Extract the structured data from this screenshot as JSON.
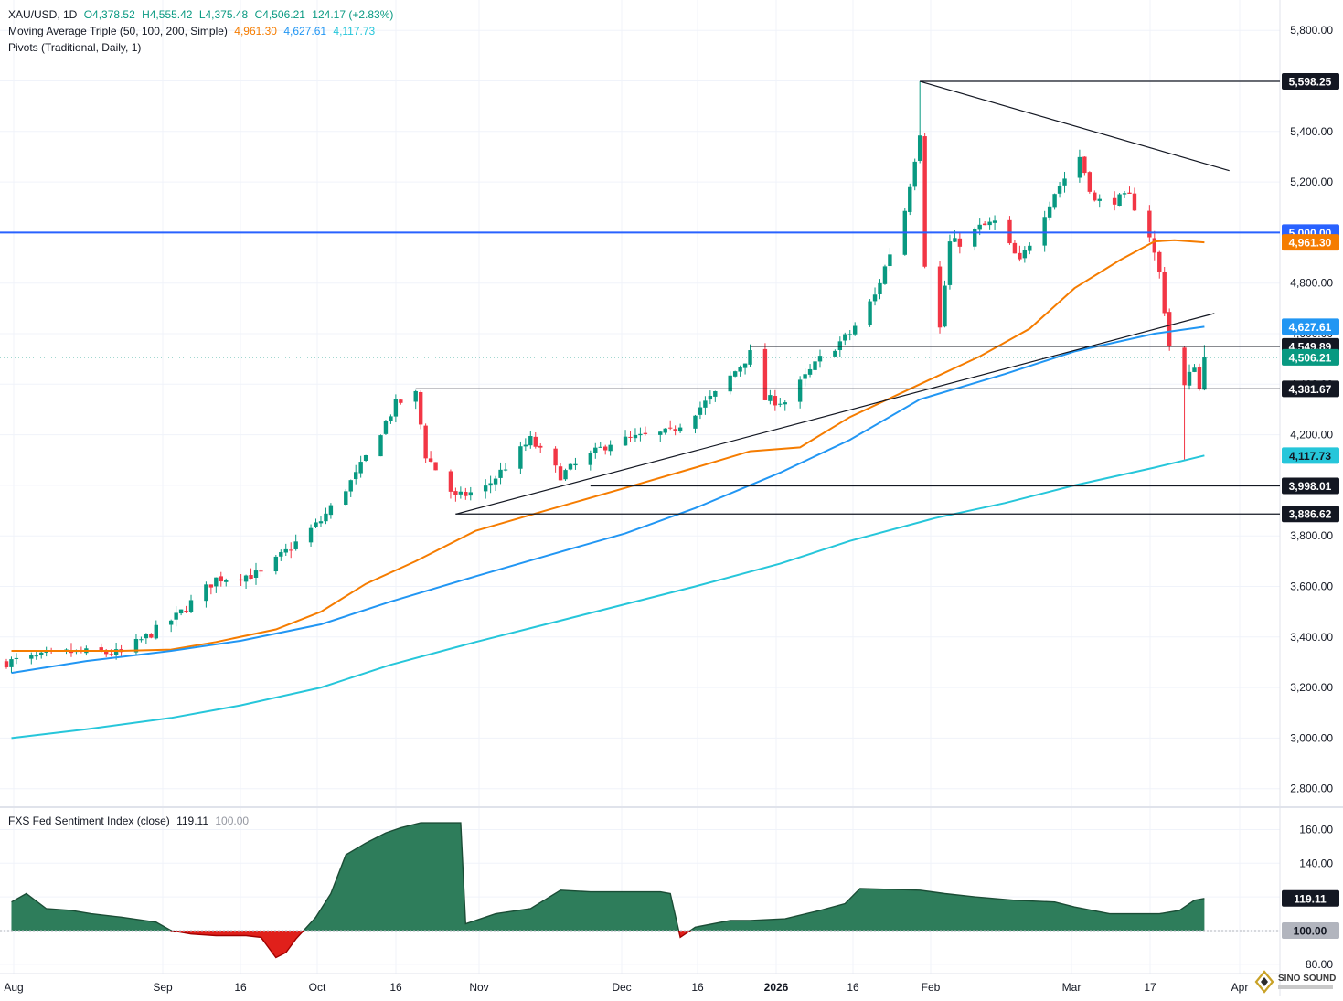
{
  "header": {
    "symbol": "XAU/USD, 1D",
    "open": "O4,378.52",
    "high": "H4,555.42",
    "low": "L4,375.48",
    "close": "C4,506.21",
    "change": "124.17 (+2.83%)",
    "ma_title": "Moving Average Triple (50, 100, 200, Simple)",
    "ma50": "4,961.30",
    "ma100": "4,627.61",
    "ma200": "4,117.73",
    "pivots": "Pivots (Traditional, Daily, 1)"
  },
  "indicator": {
    "title": "FXS Fed Sentiment Index (close)",
    "value": "119.11",
    "base": "100.00"
  },
  "logo_text": "SINO SOUND",
  "colors": {
    "up": "#089981",
    "down": "#f23645",
    "ma50": "#f57c00",
    "ma100": "#2196f3",
    "ma200": "#26c6da",
    "level_5000": "#2962ff",
    "area_pos": "#2e7d5b",
    "area_neg": "#e0201b"
  },
  "chart_data": [
    {
      "type": "candlestick",
      "title": "XAU/USD, 1D",
      "x_ticks": [
        "Aug",
        "Sep",
        "16",
        "Oct",
        "16",
        "Nov",
        "Dec",
        "16",
        "2026",
        "16",
        "Feb",
        "Mar",
        "17",
        "Apr"
      ],
      "y_ticks": [
        2800,
        3000,
        3200,
        3400,
        3600,
        3800,
        4000,
        4200,
        4400,
        4600,
        4800,
        5000,
        5200,
        5400,
        5600,
        5800
      ],
      "ylim": [
        2740,
        5900
      ],
      "grid": true,
      "price_labels": [
        {
          "text": "5,598.25",
          "value": 5598.25,
          "style": "dark"
        },
        {
          "text": "5,000.00",
          "value": 5000.0,
          "style": "blue"
        },
        {
          "text": "4,961.30",
          "value": 4961.3,
          "style": "orange"
        },
        {
          "text": "4,627.61",
          "value": 4627.61,
          "style": "lightblue"
        },
        {
          "text": "4,549.89",
          "value": 4549.89,
          "style": "dark"
        },
        {
          "text": "4,506.21",
          "value": 4506.21,
          "style": "green"
        },
        {
          "text": "4,381.67",
          "value": 4381.67,
          "style": "dark"
        },
        {
          "text": "4,117.73",
          "value": 4117.73,
          "style": "cyan"
        },
        {
          "text": "3,998.01",
          "value": 3998.01,
          "style": "dark"
        },
        {
          "text": "3,886.62",
          "value": 3886.62,
          "style": "dark"
        }
      ],
      "levels": [
        {
          "name": "R-5598",
          "value": 5598.25,
          "from": "2026-01-29"
        },
        {
          "name": "level-5000",
          "value": 5000.0,
          "from": "2025-07-31"
        },
        {
          "name": "R-4549",
          "value": 4549.89,
          "from": "2025-12-26"
        },
        {
          "name": "S-4381",
          "value": 4381.67,
          "from": "2025-10-20"
        },
        {
          "name": "S-3998",
          "value": 3998.01,
          "from": "2025-11-24"
        },
        {
          "name": "S-3886",
          "value": 3886.62,
          "from": "2025-10-28"
        }
      ],
      "trendlines": [
        {
          "name": "descending-trendline",
          "from": [
            "2026-01-29",
            5598
          ],
          "to": [
            "2026-04-01",
            5245
          ]
        },
        {
          "name": "ascending-trendline",
          "from": [
            "2025-10-28",
            3886
          ],
          "to": [
            "2026-03-29",
            4680
          ]
        }
      ],
      "moving_averages": [
        {
          "name": "MA 50",
          "color": "#f57c00",
          "points": [
            [
              "2025-07-31",
              3345
            ],
            [
              "2025-08-22",
              3345
            ],
            [
              "2025-09-01",
              3350
            ],
            [
              "2025-09-10",
              3380
            ],
            [
              "2025-09-22",
              3430
            ],
            [
              "2025-10-01",
              3500
            ],
            [
              "2025-10-10",
              3610
            ],
            [
              "2025-10-20",
              3700
            ],
            [
              "2025-11-01",
              3820
            ],
            [
              "2025-11-15",
              3900
            ],
            [
              "2025-12-01",
              3990
            ],
            [
              "2025-12-15",
              4070
            ],
            [
              "2025-12-26",
              4135
            ],
            [
              "2026-01-05",
              4150
            ],
            [
              "2026-01-15",
              4270
            ],
            [
              "2026-01-29",
              4400
            ],
            [
              "2026-02-10",
              4510
            ],
            [
              "2026-02-20",
              4620
            ],
            [
              "2026-03-01",
              4780
            ],
            [
              "2026-03-10",
              4890
            ],
            [
              "2026-03-17",
              4965
            ],
            [
              "2026-03-21",
              4970
            ],
            [
              "2026-03-27",
              4961.3
            ]
          ]
        },
        {
          "name": "MA 100",
          "color": "#2196f3",
          "points": [
            [
              "2025-07-31",
              3258
            ],
            [
              "2025-08-15",
              3305
            ],
            [
              "2025-09-01",
              3345
            ],
            [
              "2025-09-15",
              3385
            ],
            [
              "2025-10-01",
              3450
            ],
            [
              "2025-10-15",
              3540
            ],
            [
              "2025-11-01",
              3640
            ],
            [
              "2025-11-15",
              3720
            ],
            [
              "2025-12-01",
              3810
            ],
            [
              "2025-12-15",
              3910
            ],
            [
              "2026-01-01",
              4050
            ],
            [
              "2026-01-15",
              4180
            ],
            [
              "2026-01-29",
              4340
            ],
            [
              "2026-02-15",
              4440
            ],
            [
              "2026-03-01",
              4530
            ],
            [
              "2026-03-17",
              4600
            ],
            [
              "2026-03-27",
              4627.61
            ]
          ]
        },
        {
          "name": "MA 200",
          "color": "#26c6da",
          "points": [
            [
              "2025-07-31",
              3000
            ],
            [
              "2025-08-15",
              3035
            ],
            [
              "2025-09-01",
              3080
            ],
            [
              "2025-09-15",
              3130
            ],
            [
              "2025-10-01",
              3200
            ],
            [
              "2025-10-15",
              3290
            ],
            [
              "2025-11-01",
              3380
            ],
            [
              "2025-11-15",
              3450
            ],
            [
              "2025-12-01",
              3530
            ],
            [
              "2025-12-15",
              3600
            ],
            [
              "2026-01-01",
              3690
            ],
            [
              "2026-01-15",
              3780
            ],
            [
              "2026-02-01",
              3870
            ],
            [
              "2026-02-15",
              3930
            ],
            [
              "2026-03-01",
              4000
            ],
            [
              "2026-03-17",
              4070
            ],
            [
              "2026-03-27",
              4117.73
            ]
          ]
        }
      ],
      "anchors": [
        {
          "date": "2025-07-30",
          "price": 3300
        },
        {
          "date": "2025-08-12",
          "price": 3340
        },
        {
          "date": "2025-08-22",
          "price": 3335
        },
        {
          "date": "2025-09-02",
          "price": 3480
        },
        {
          "date": "2025-09-10",
          "price": 3630
        },
        {
          "date": "2025-09-19",
          "price": 3650
        },
        {
          "date": "2025-10-01",
          "price": 3860
        },
        {
          "date": "2025-10-08",
          "price": 4040
        },
        {
          "date": "2025-10-16",
          "price": 4320
        },
        {
          "date": "2025-10-20",
          "price": 4360
        },
        {
          "date": "2025-10-22",
          "price": 4120
        },
        {
          "date": "2025-10-28",
          "price": 3950
        },
        {
          "date": "2025-11-03",
          "price": 3990
        },
        {
          "date": "2025-11-12",
          "price": 4180
        },
        {
          "date": "2025-11-18",
          "price": 4040
        },
        {
          "date": "2025-11-28",
          "price": 4170
        },
        {
          "date": "2025-12-10",
          "price": 4210
        },
        {
          "date": "2025-12-19",
          "price": 4360
        },
        {
          "date": "2025-12-26",
          "price": 4520
        },
        {
          "date": "2025-12-29",
          "price": 4340
        },
        {
          "date": "2026-01-02",
          "price": 4330
        },
        {
          "date": "2026-01-09",
          "price": 4500
        },
        {
          "date": "2026-01-15",
          "price": 4600
        },
        {
          "date": "2026-01-20",
          "price": 4750
        },
        {
          "date": "2026-01-26",
          "price": 5090
        },
        {
          "date": "2026-01-29",
          "price": 5400
        },
        {
          "date": "2026-01-30",
          "price": 4880
        },
        {
          "date": "2026-02-02",
          "price": 4620
        },
        {
          "date": "2026-02-04",
          "price": 4960
        },
        {
          "date": "2026-02-06",
          "price": 4960
        },
        {
          "date": "2026-02-10",
          "price": 5020
        },
        {
          "date": "2026-02-13",
          "price": 5040
        },
        {
          "date": "2026-02-18",
          "price": 4880
        },
        {
          "date": "2026-02-25",
          "price": 5160
        },
        {
          "date": "2026-03-02",
          "price": 5300
        },
        {
          "date": "2026-03-05",
          "price": 5120
        },
        {
          "date": "2026-03-09",
          "price": 5130
        },
        {
          "date": "2026-03-12",
          "price": 5140
        },
        {
          "date": "2026-03-16",
          "price": 4990
        },
        {
          "date": "2026-03-18",
          "price": 4840
        },
        {
          "date": "2026-03-20",
          "price": 4550
        },
        {
          "date": "2026-03-23",
          "price": 4390
        },
        {
          "date": "2026-03-25",
          "price": 4480
        },
        {
          "date": "2026-03-26",
          "price": 4378.52
        },
        {
          "date": "2026-03-27",
          "price": 4506.21
        }
      ],
      "last_candle": {
        "open": 4378.52,
        "high": 4555.42,
        "low": 4375.48,
        "close": 4506.21
      }
    },
    {
      "type": "area",
      "title": "FXS Fed Sentiment Index (close)",
      "y_ticks": [
        80,
        100,
        120,
        140,
        160
      ],
      "ylim": [
        78,
        168
      ],
      "baseline": 100,
      "last_value": 119.11,
      "points": [
        [
          "2025-07-31",
          117
        ],
        [
          "2025-08-03",
          122
        ],
        [
          "2025-08-07",
          113
        ],
        [
          "2025-08-12",
          112
        ],
        [
          "2025-08-16",
          110
        ],
        [
          "2025-08-22",
          108
        ],
        [
          "2025-08-29",
          105
        ],
        [
          "2025-09-01",
          100
        ],
        [
          "2025-09-05",
          98
        ],
        [
          "2025-09-10",
          97
        ],
        [
          "2025-09-16",
          97
        ],
        [
          "2025-09-19",
          96
        ],
        [
          "2025-09-22",
          84
        ],
        [
          "2025-09-24",
          87
        ],
        [
          "2025-09-26",
          95
        ],
        [
          "2025-09-30",
          108
        ],
        [
          "2025-10-03",
          122
        ],
        [
          "2025-10-06",
          145
        ],
        [
          "2025-10-10",
          152
        ],
        [
          "2025-10-14",
          158
        ],
        [
          "2025-10-17",
          161
        ],
        [
          "2025-10-21",
          164
        ],
        [
          "2025-10-29",
          164
        ],
        [
          "2025-10-30",
          104
        ],
        [
          "2025-11-01",
          106
        ],
        [
          "2025-11-05",
          110
        ],
        [
          "2025-11-12",
          113
        ],
        [
          "2025-11-18",
          124
        ],
        [
          "2025-11-24",
          123
        ],
        [
          "2025-12-08",
          123
        ],
        [
          "2025-12-10",
          122
        ],
        [
          "2025-12-12",
          96
        ],
        [
          "2025-12-15",
          102
        ],
        [
          "2025-12-22",
          106
        ],
        [
          "2025-12-26",
          106
        ],
        [
          "2026-01-02",
          107
        ],
        [
          "2026-01-09",
          112
        ],
        [
          "2026-01-14",
          116
        ],
        [
          "2026-01-17",
          125
        ],
        [
          "2026-01-29",
          124
        ],
        [
          "2026-02-03",
          122
        ],
        [
          "2026-02-09",
          120
        ],
        [
          "2026-02-17",
          118
        ],
        [
          "2026-02-25",
          117
        ],
        [
          "2026-03-01",
          114
        ],
        [
          "2026-03-08",
          110
        ],
        [
          "2026-03-13",
          110
        ],
        [
          "2026-03-18",
          110
        ],
        [
          "2026-03-22",
          112
        ],
        [
          "2026-03-25",
          118
        ],
        [
          "2026-03-27",
          119.11
        ]
      ],
      "axis_labels": [
        {
          "text": "160.00",
          "value": 160
        },
        {
          "text": "140.00",
          "value": 140
        },
        {
          "text": "119.11",
          "value": 119.11,
          "style": "dark"
        },
        {
          "text": "100.00",
          "value": 100,
          "style": "gray"
        },
        {
          "text": "80.00",
          "value": 80
        }
      ]
    }
  ]
}
